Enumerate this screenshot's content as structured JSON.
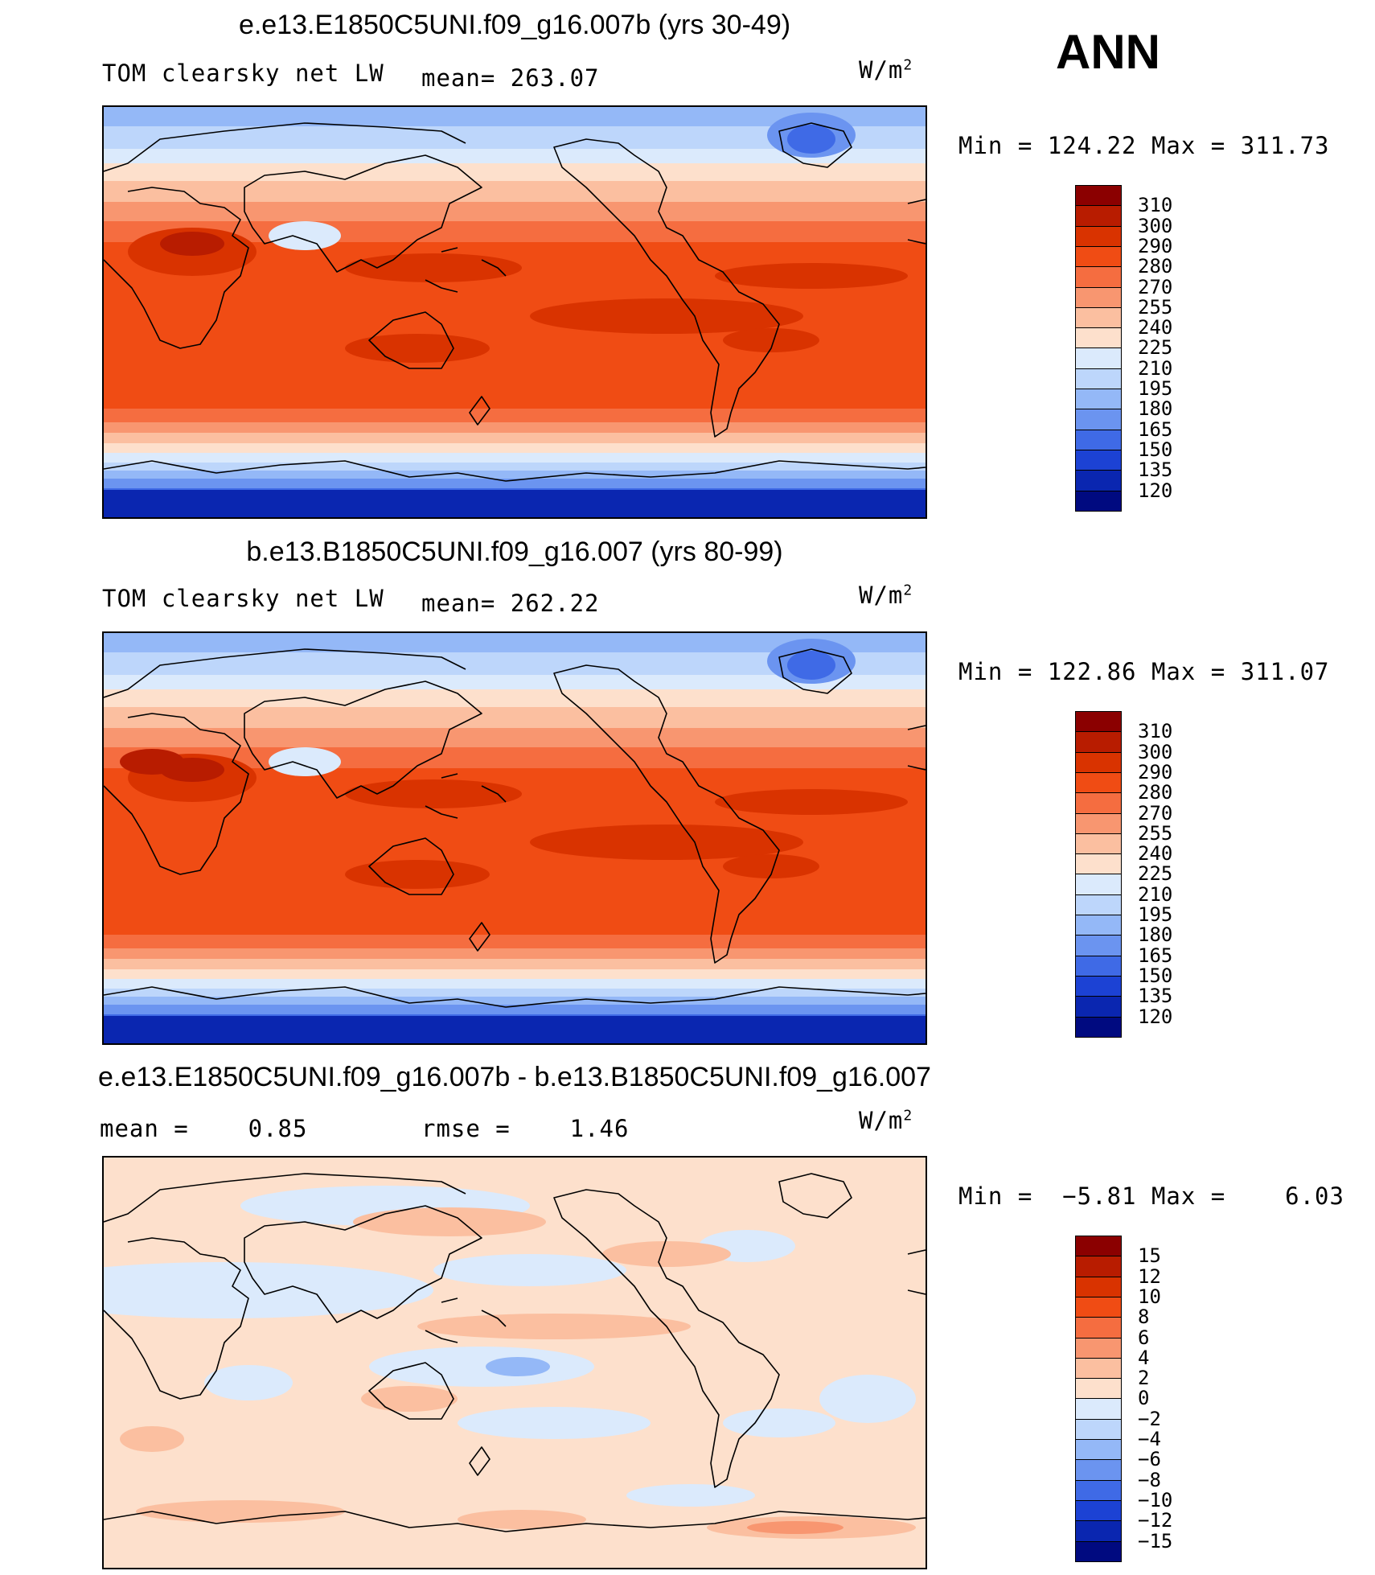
{
  "season": "ANN",
  "panels": [
    {
      "title": "e.e13.E1850C5UNI.f09_g16.007b (yrs 30-49)",
      "left_label": "TOM clearsky net LW",
      "mid_label": "mean= 263.07",
      "units_base": "W/m",
      "units_sup": "2",
      "minmax": "Min = 124.22 Max = 311.73",
      "colors": "red_blue",
      "labels": [
        "310",
        "300",
        "290",
        "280",
        "270",
        "255",
        "240",
        "225",
        "210",
        "195",
        "180",
        "165",
        "150",
        "135",
        "120"
      ]
    },
    {
      "title": "b.e13.B1850C5UNI.f09_g16.007 (yrs 80-99)",
      "left_label": "TOM clearsky net LW",
      "mid_label": "mean= 262.22",
      "units_base": "W/m",
      "units_sup": "2",
      "minmax": "Min = 122.86 Max = 311.07",
      "colors": "red_blue",
      "labels": [
        "310",
        "300",
        "290",
        "280",
        "270",
        "255",
        "240",
        "225",
        "210",
        "195",
        "180",
        "165",
        "150",
        "135",
        "120"
      ]
    },
    {
      "title": "e.e13.E1850C5UNI.f09_g16.007b - b.e13.B1850C5UNI.f09_g16.007",
      "left_label": "mean =    0.85",
      "mid_label": "rmse =    1.46",
      "units_base": "W/m",
      "units_sup": "2",
      "minmax": "Min =  −5.81 Max =    6.03",
      "colors": "diff",
      "labels": [
        "15",
        "12",
        "10",
        "8",
        "6",
        "4",
        "2",
        "0",
        "−2",
        "−4",
        "−6",
        "−8",
        "−10",
        "−12",
        "−15"
      ]
    }
  ],
  "colorscales": {
    "red_blue": [
      "#8b0000",
      "#b81c00",
      "#d93300",
      "#f04c14",
      "#f56d40",
      "#f89670",
      "#fbbfa0",
      "#fde0cc",
      "#dbeafc",
      "#bdd6fb",
      "#94b8f7",
      "#6b94f0",
      "#3f6ae6",
      "#1c42d4",
      "#0a26b0",
      "#000a80"
    ],
    "diff": [
      "#8b0000",
      "#b81c00",
      "#d93300",
      "#f04c14",
      "#f56d40",
      "#f89670",
      "#fbbfa0",
      "#fde0cc",
      "#dbeafc",
      "#bdd6fb",
      "#94b8f7",
      "#6b94f0",
      "#3f6ae6",
      "#1c42d4",
      "#0a26b0",
      "#000a80"
    ]
  }
}
